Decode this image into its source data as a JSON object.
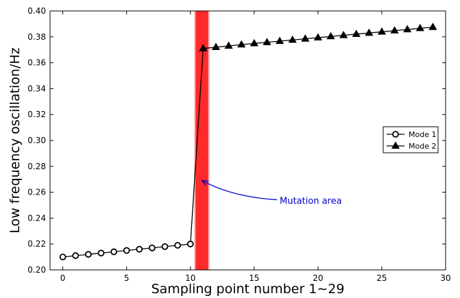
{
  "chart_data": {
    "type": "line",
    "xlabel": "Sampling point number 1∼29",
    "ylabel": "Low frequency oscillation/Hz",
    "xlim": [
      -1,
      30
    ],
    "ylim": [
      0.2,
      0.4
    ],
    "x_ticks": [
      "0",
      "5",
      "10",
      "15",
      "20",
      "25",
      "30"
    ],
    "y_ticks": [
      "0.20",
      "0.22",
      "0.24",
      "0.26",
      "0.28",
      "0.30",
      "0.32",
      "0.34",
      "0.36",
      "0.38",
      "0.40"
    ],
    "grid": false,
    "legend_position": "center-right",
    "series": [
      {
        "name": "Mode 1",
        "marker": "circle",
        "color": "#000000",
        "x": [
          0,
          1,
          2,
          3,
          4,
          5,
          6,
          7,
          8,
          9,
          10
        ],
        "y": [
          0.21,
          0.211,
          0.212,
          0.213,
          0.214,
          0.215,
          0.216,
          0.217,
          0.218,
          0.219,
          0.22
        ]
      },
      {
        "name": "Mode 2",
        "marker": "triangle",
        "color": "#000000",
        "x": [
          11,
          12,
          13,
          14,
          15,
          16,
          17,
          18,
          19,
          20,
          21,
          22,
          23,
          24,
          25,
          26,
          27,
          28,
          29
        ],
        "y": [
          0.371,
          0.372,
          0.373,
          0.374,
          0.3749,
          0.3758,
          0.3767,
          0.3776,
          0.3785,
          0.3794,
          0.3803,
          0.3812,
          0.3821,
          0.383,
          0.3839,
          0.3848,
          0.3857,
          0.3866,
          0.3875
        ]
      }
    ],
    "transition_segment": {
      "from": [
        10,
        0.22
      ],
      "to": [
        11,
        0.371
      ]
    },
    "highlight_band": {
      "x_range": [
        10.4,
        11.4
      ],
      "color": "#ff2a2a"
    },
    "annotation": {
      "text": "Mutation area",
      "color": "#0000cc",
      "points_to": [
        10.6,
        0.27
      ],
      "text_at": [
        17,
        0.251
      ]
    }
  }
}
